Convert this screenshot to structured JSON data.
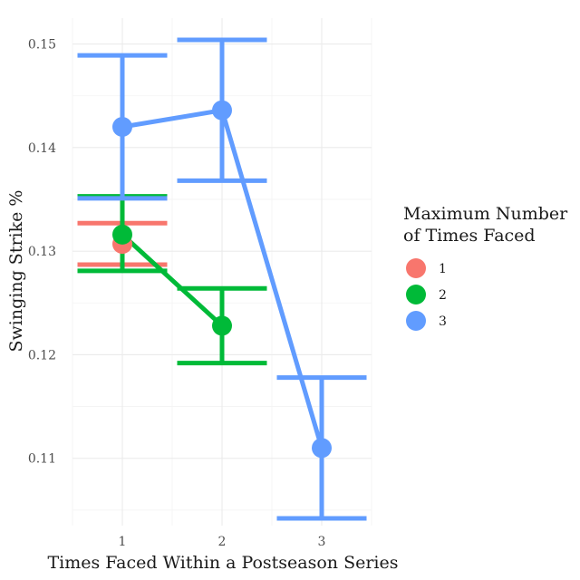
{
  "chart_data": {
    "type": "line",
    "xlabel": "Times Faced Within a Postseason Series",
    "ylabel": "Swinging Strike %",
    "x_ticks": [
      "1",
      "2",
      "3"
    ],
    "y_ticks": [
      "0.11",
      "0.12",
      "0.13",
      "0.14",
      "0.15"
    ],
    "xlim": [
      0.5,
      3.5
    ],
    "ylim": [
      0.1035,
      0.1525
    ],
    "grid": true,
    "legend": {
      "title_line1": "Maximum Number",
      "title_line2": "of Times Faced",
      "position": "right"
    },
    "series": [
      {
        "name": "1",
        "color": "#f8766d",
        "points": [
          {
            "x": 1,
            "y": 0.1307,
            "ymin": 0.1287,
            "ymax": 0.1327
          }
        ]
      },
      {
        "name": "2",
        "color": "#00ba38",
        "points": [
          {
            "x": 1,
            "y": 0.1316,
            "ymin": 0.1281,
            "ymax": 0.1353
          },
          {
            "x": 2,
            "y": 0.1228,
            "ymin": 0.1192,
            "ymax": 0.1264
          }
        ]
      },
      {
        "name": "3",
        "color": "#619cff",
        "points": [
          {
            "x": 1,
            "y": 0.142,
            "ymin": 0.1351,
            "ymax": 0.1489
          },
          {
            "x": 2,
            "y": 0.1436,
            "ymin": 0.1368,
            "ymax": 0.1504
          },
          {
            "x": 3,
            "y": 0.111,
            "ymin": 0.1042,
            "ymax": 0.1178
          }
        ]
      }
    ]
  }
}
